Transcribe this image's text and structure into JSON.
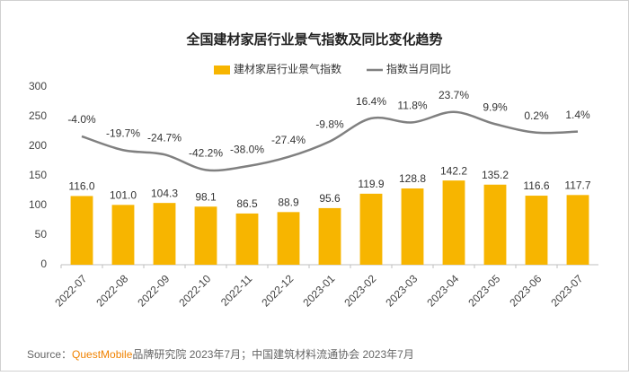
{
  "chart_data": {
    "type": "bar-line",
    "title": "全国建材家居行业景气指数及同比变化趋势",
    "categories": [
      "2022-07",
      "2022-08",
      "2022-09",
      "2022-10",
      "2022-11",
      "2022-12",
      "2023-01",
      "2023-02",
      "2023-03",
      "2023-04",
      "2023-05",
      "2023-06",
      "2023-07"
    ],
    "series": [
      {
        "name": "建材家居行业景气指数",
        "color": "#f7b500",
        "type": "bar",
        "values": [
          116.0,
          101.0,
          104.3,
          98.1,
          86.5,
          88.9,
          95.6,
          119.9,
          128.8,
          142.2,
          135.2,
          116.6,
          117.7
        ],
        "value_labels": [
          "116.0",
          "101.0",
          "104.3",
          "98.1",
          "86.5",
          "88.9",
          "95.6",
          "119.9",
          "128.8",
          "142.2",
          "135.2",
          "116.6",
          "117.7"
        ]
      },
      {
        "name": "指数当月同比",
        "color": "#808080",
        "type": "line",
        "axis": "y2",
        "values": [
          -4.0,
          -19.7,
          -24.7,
          -42.2,
          -38.0,
          -27.4,
          -9.8,
          16.4,
          11.8,
          23.7,
          9.9,
          0.2,
          1.4
        ],
        "value_labels": [
          "-4.0%",
          "-19.7%",
          "-24.7%",
          "-42.2%",
          "-38.0%",
          "-27.4%",
          "-9.8%",
          "16.4%",
          "11.8%",
          "23.7%",
          "9.9%",
          "0.2%",
          "1.4%"
        ]
      }
    ],
    "ylim": [
      0,
      300
    ],
    "yticks": [
      0,
      50,
      100,
      150,
      200,
      250,
      300
    ],
    "y2lim": [
      -150,
      52
    ],
    "source": {
      "label": "Source：",
      "brand": "QuestMobile",
      "text": "品牌研究院 2023年7月；中国建筑材料流通协会 2023年7月"
    }
  }
}
